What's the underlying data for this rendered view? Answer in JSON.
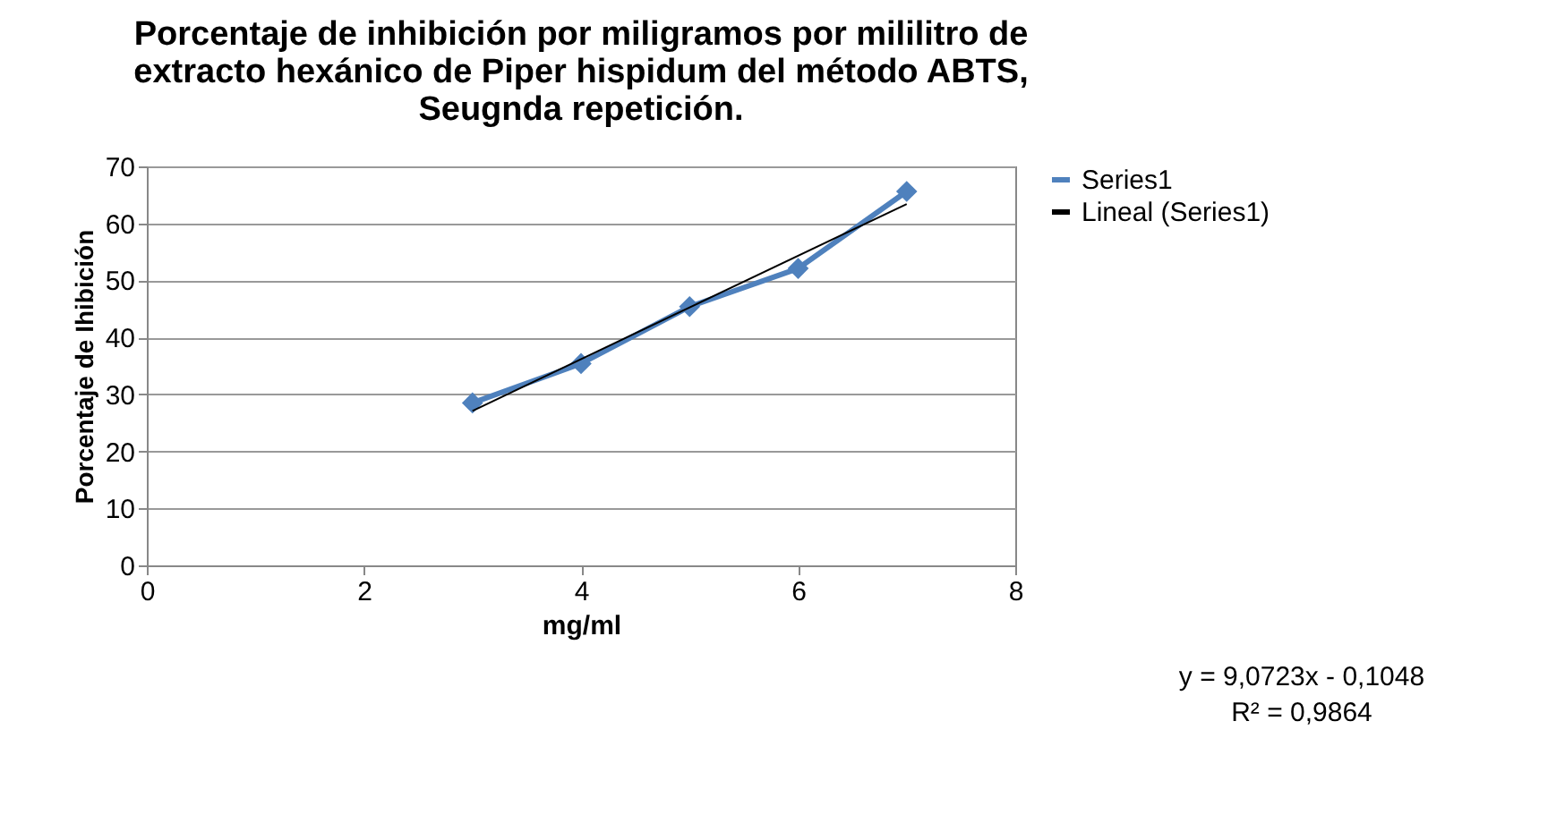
{
  "chart_data": {
    "type": "line",
    "title": "Porcentaje de inhibición por miligramos por mililitro de\nextracto hexánico de Piper hispidum del método ABTS,\nSeugnda repetición.",
    "xlabel": "mg/ml",
    "ylabel": "Porcentaje de Ihibición",
    "x": [
      3,
      4,
      5,
      6,
      7
    ],
    "series": [
      {
        "name": "Series1",
        "color": "#4f81bd",
        "values": [
          28.5,
          35.4,
          45.4,
          52.1,
          65.6
        ],
        "marker": "diamond"
      },
      {
        "name": "Lineal (Series1)",
        "color": "#000000",
        "type": "line",
        "x": [
          3,
          7
        ],
        "values": [
          27.1,
          63.4
        ],
        "marker": "none"
      }
    ],
    "xlim": [
      0,
      8
    ],
    "xticks": [
      0,
      2,
      4,
      6,
      8
    ],
    "ylim": [
      0,
      70
    ],
    "yticks": [
      0,
      10,
      20,
      30,
      40,
      50,
      60,
      70
    ],
    "grid": "y",
    "legend": "right",
    "line_style": "solid",
    "annotations": [
      "y = 9,0723x - 0,1048",
      "R² = 0,9864"
    ]
  }
}
